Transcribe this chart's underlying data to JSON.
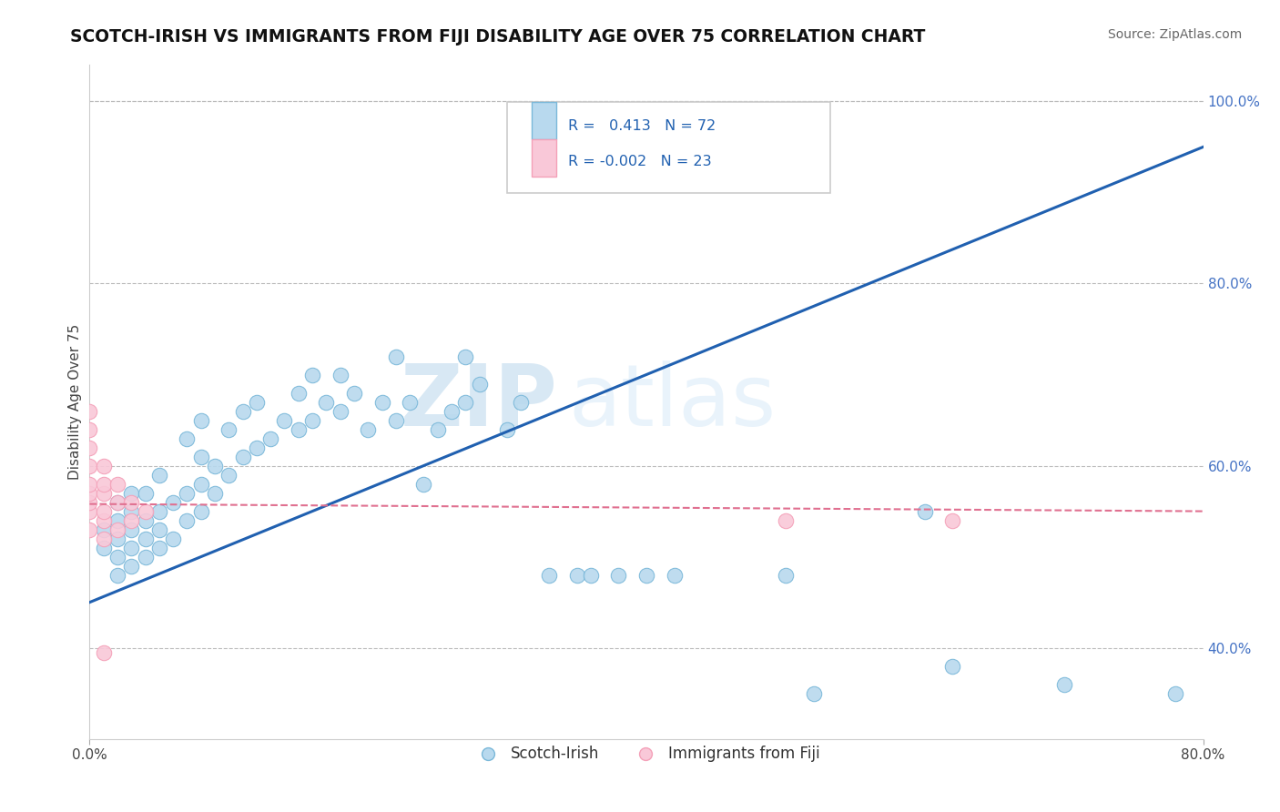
{
  "title": "SCOTCH-IRISH VS IMMIGRANTS FROM FIJI DISABILITY AGE OVER 75 CORRELATION CHART",
  "source": "Source: ZipAtlas.com",
  "ylabel_left": "Disability Age Over 75",
  "xlim": [
    0.0,
    0.8
  ],
  "ylim": [
    0.3,
    1.04
  ],
  "ytick_right_labels": [
    "40.0%",
    "60.0%",
    "80.0%",
    "100.0%"
  ],
  "ytick_right_vals": [
    0.4,
    0.6,
    0.8,
    1.0
  ],
  "blue_color": "#7ab8d9",
  "blue_fill": "#b8d9ee",
  "pink_color": "#f4a0b8",
  "pink_fill": "#f9c8d8",
  "trend_blue": "#2060b0",
  "trend_pink": "#e07090",
  "R_blue": 0.413,
  "N_blue": 72,
  "R_pink": -0.002,
  "N_pink": 23,
  "watermark_zip": "ZIP",
  "watermark_atlas": "atlas",
  "legend_labels": [
    "Scotch-Irish",
    "Immigrants from Fiji"
  ],
  "blue_scatter_x": [
    0.01,
    0.01,
    0.02,
    0.02,
    0.02,
    0.02,
    0.02,
    0.03,
    0.03,
    0.03,
    0.03,
    0.03,
    0.04,
    0.04,
    0.04,
    0.04,
    0.05,
    0.05,
    0.05,
    0.05,
    0.06,
    0.06,
    0.07,
    0.07,
    0.07,
    0.08,
    0.08,
    0.08,
    0.08,
    0.09,
    0.09,
    0.1,
    0.1,
    0.11,
    0.11,
    0.12,
    0.12,
    0.13,
    0.14,
    0.15,
    0.15,
    0.16,
    0.16,
    0.17,
    0.18,
    0.18,
    0.19,
    0.2,
    0.21,
    0.22,
    0.22,
    0.23,
    0.24,
    0.25,
    0.26,
    0.27,
    0.27,
    0.28,
    0.3,
    0.31,
    0.33,
    0.35,
    0.36,
    0.38,
    0.4,
    0.42,
    0.5,
    0.52,
    0.6,
    0.62,
    0.7,
    0.78
  ],
  "blue_scatter_y": [
    0.51,
    0.53,
    0.48,
    0.5,
    0.52,
    0.54,
    0.56,
    0.49,
    0.51,
    0.53,
    0.55,
    0.57,
    0.5,
    0.52,
    0.54,
    0.57,
    0.51,
    0.53,
    0.55,
    0.59,
    0.52,
    0.56,
    0.54,
    0.57,
    0.63,
    0.55,
    0.58,
    0.61,
    0.65,
    0.57,
    0.6,
    0.59,
    0.64,
    0.61,
    0.66,
    0.62,
    0.67,
    0.63,
    0.65,
    0.64,
    0.68,
    0.65,
    0.7,
    0.67,
    0.66,
    0.7,
    0.68,
    0.64,
    0.67,
    0.65,
    0.72,
    0.67,
    0.58,
    0.64,
    0.66,
    0.67,
    0.72,
    0.69,
    0.64,
    0.67,
    0.48,
    0.48,
    0.48,
    0.48,
    0.48,
    0.48,
    0.48,
    0.35,
    0.55,
    0.38,
    0.36,
    0.35
  ],
  "pink_scatter_x": [
    0.0,
    0.0,
    0.0,
    0.0,
    0.0,
    0.0,
    0.0,
    0.0,
    0.0,
    0.01,
    0.01,
    0.01,
    0.01,
    0.01,
    0.01,
    0.02,
    0.02,
    0.02,
    0.03,
    0.03,
    0.04,
    0.5,
    0.62
  ],
  "pink_scatter_y": [
    0.53,
    0.55,
    0.56,
    0.57,
    0.58,
    0.6,
    0.62,
    0.64,
    0.66,
    0.52,
    0.54,
    0.55,
    0.57,
    0.58,
    0.6,
    0.53,
    0.56,
    0.58,
    0.54,
    0.56,
    0.55,
    0.54,
    0.54
  ],
  "pink_outlier_x": [
    0.01
  ],
  "pink_outlier_y": [
    0.395
  ]
}
